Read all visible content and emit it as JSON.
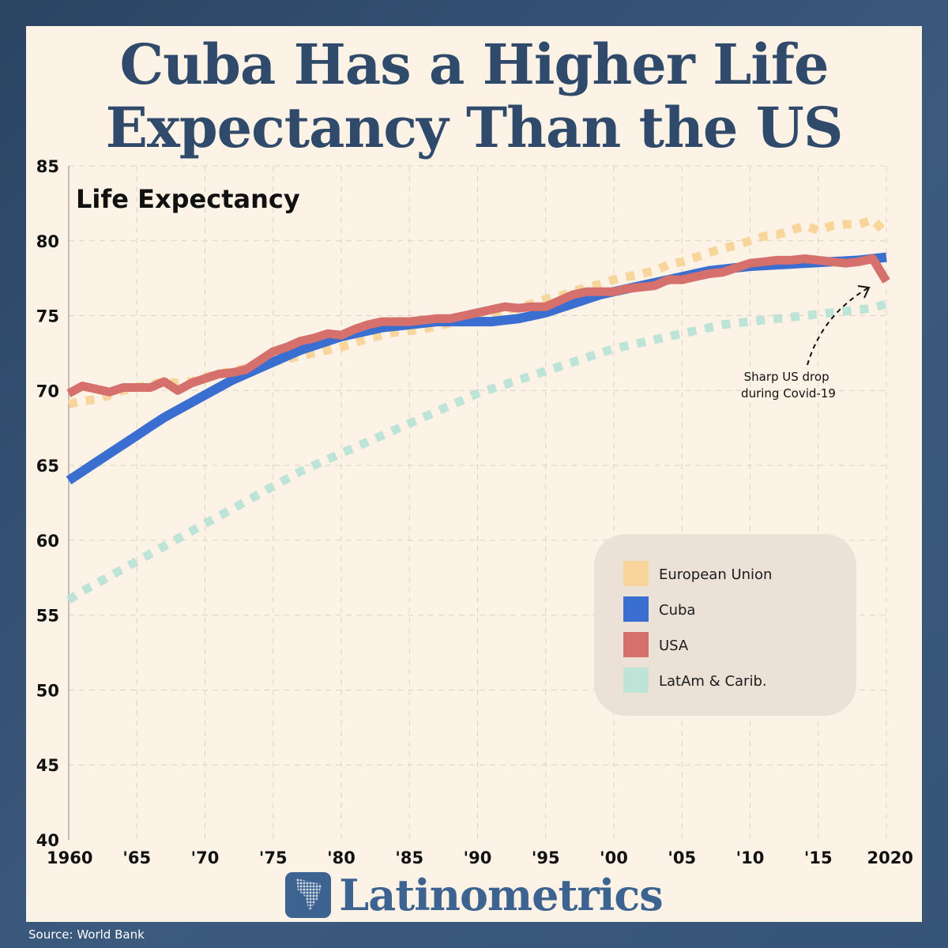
{
  "title": "Cuba Has a Higher Life Expectancy Than the US",
  "brand": "Latinometrics",
  "source": "Source: World Bank",
  "chart_data": {
    "type": "line",
    "title": "Life Expectancy",
    "annotation": "Sharp US drop during Covid-19",
    "annotation_lines": [
      "Sharp US drop",
      "during Covid-19"
    ],
    "x_tick_labels": [
      "1960",
      "'65",
      "'70",
      "'75",
      "'80",
      "'85",
      "'90",
      "'95",
      "'00",
      "'05",
      "'10",
      "'15",
      "2020"
    ],
    "x_tick_values": [
      1960,
      1965,
      1970,
      1975,
      1980,
      1985,
      1990,
      1995,
      2000,
      2005,
      2010,
      2015,
      2020
    ],
    "y_ticks": [
      40,
      45,
      50,
      55,
      60,
      65,
      70,
      75,
      80,
      85
    ],
    "xlim": [
      1960,
      2020
    ],
    "ylim": [
      40,
      85
    ],
    "grid": true,
    "legend_position": "right",
    "x": [
      1960,
      1961,
      1962,
      1963,
      1964,
      1965,
      1966,
      1967,
      1968,
      1969,
      1970,
      1971,
      1972,
      1973,
      1974,
      1975,
      1976,
      1977,
      1978,
      1979,
      1980,
      1981,
      1982,
      1983,
      1984,
      1985,
      1986,
      1987,
      1988,
      1989,
      1990,
      1991,
      1992,
      1993,
      1994,
      1995,
      1996,
      1997,
      1998,
      1999,
      2000,
      2001,
      2002,
      2003,
      2004,
      2005,
      2006,
      2007,
      2008,
      2009,
      2010,
      2011,
      2012,
      2013,
      2014,
      2015,
      2016,
      2017,
      2018,
      2019,
      2020
    ],
    "series": [
      {
        "name": "European Union",
        "color": "#f8d59b",
        "style": "dotted",
        "values": [
          69.1,
          69.3,
          69.4,
          69.7,
          70.0,
          70.2,
          70.4,
          70.6,
          70.5,
          70.6,
          70.9,
          71.1,
          71.3,
          71.5,
          71.7,
          71.9,
          72.1,
          72.3,
          72.5,
          72.7,
          72.9,
          73.2,
          73.5,
          73.7,
          73.9,
          74.0,
          74.1,
          74.3,
          74.5,
          74.7,
          74.9,
          75.1,
          75.4,
          75.5,
          75.8,
          76.1,
          76.3,
          76.6,
          76.9,
          77.1,
          77.4,
          77.6,
          77.8,
          78.0,
          78.4,
          78.6,
          78.9,
          79.2,
          79.5,
          79.7,
          80.0,
          80.3,
          80.4,
          80.7,
          81.0,
          80.7,
          81.0,
          81.1,
          81.1,
          81.4,
          80.5
        ]
      },
      {
        "name": "Cuba",
        "color": "#3a6fd1",
        "style": "solid",
        "values": [
          64.0,
          64.6,
          65.2,
          65.8,
          66.4,
          67.0,
          67.6,
          68.2,
          68.7,
          69.2,
          69.7,
          70.2,
          70.7,
          71.1,
          71.5,
          71.9,
          72.3,
          72.7,
          73.0,
          73.3,
          73.6,
          73.8,
          74.0,
          74.2,
          74.3,
          74.4,
          74.5,
          74.6,
          74.6,
          74.6,
          74.6,
          74.6,
          74.7,
          74.8,
          75.0,
          75.2,
          75.5,
          75.8,
          76.1,
          76.4,
          76.6,
          76.8,
          77.0,
          77.2,
          77.4,
          77.6,
          77.8,
          78.0,
          78.1,
          78.2,
          78.3,
          78.35,
          78.4,
          78.45,
          78.5,
          78.55,
          78.6,
          78.65,
          78.7,
          78.8,
          78.9
        ]
      },
      {
        "name": "USA",
        "color": "#d6706c",
        "style": "solid",
        "values": [
          69.8,
          70.3,
          70.1,
          69.9,
          70.2,
          70.2,
          70.2,
          70.6,
          70.0,
          70.5,
          70.8,
          71.1,
          71.2,
          71.4,
          72.0,
          72.6,
          72.9,
          73.3,
          73.5,
          73.8,
          73.7,
          74.1,
          74.4,
          74.6,
          74.6,
          74.6,
          74.7,
          74.8,
          74.8,
          75.0,
          75.2,
          75.4,
          75.6,
          75.5,
          75.6,
          75.6,
          76.0,
          76.4,
          76.6,
          76.6,
          76.6,
          76.8,
          76.9,
          77.0,
          77.4,
          77.4,
          77.6,
          77.8,
          77.9,
          78.2,
          78.5,
          78.6,
          78.7,
          78.7,
          78.8,
          78.7,
          78.6,
          78.5,
          78.6,
          78.8,
          77.3
        ]
      },
      {
        "name": "LatAm & Carib.",
        "color": "#bde4d6",
        "style": "dotted",
        "values": [
          56.0,
          56.6,
          57.1,
          57.6,
          58.1,
          58.6,
          59.1,
          59.6,
          60.1,
          60.6,
          61.1,
          61.6,
          62.1,
          62.6,
          63.1,
          63.6,
          64.1,
          64.6,
          65.0,
          65.4,
          65.8,
          66.2,
          66.6,
          67.0,
          67.4,
          67.8,
          68.2,
          68.6,
          69.0,
          69.4,
          69.8,
          70.1,
          70.4,
          70.7,
          71.0,
          71.3,
          71.6,
          71.9,
          72.2,
          72.5,
          72.8,
          73.0,
          73.2,
          73.4,
          73.6,
          73.8,
          74.0,
          74.2,
          74.4,
          74.5,
          74.6,
          74.7,
          74.8,
          74.9,
          75.0,
          75.1,
          75.2,
          75.3,
          75.4,
          75.5,
          75.8
        ]
      }
    ]
  }
}
